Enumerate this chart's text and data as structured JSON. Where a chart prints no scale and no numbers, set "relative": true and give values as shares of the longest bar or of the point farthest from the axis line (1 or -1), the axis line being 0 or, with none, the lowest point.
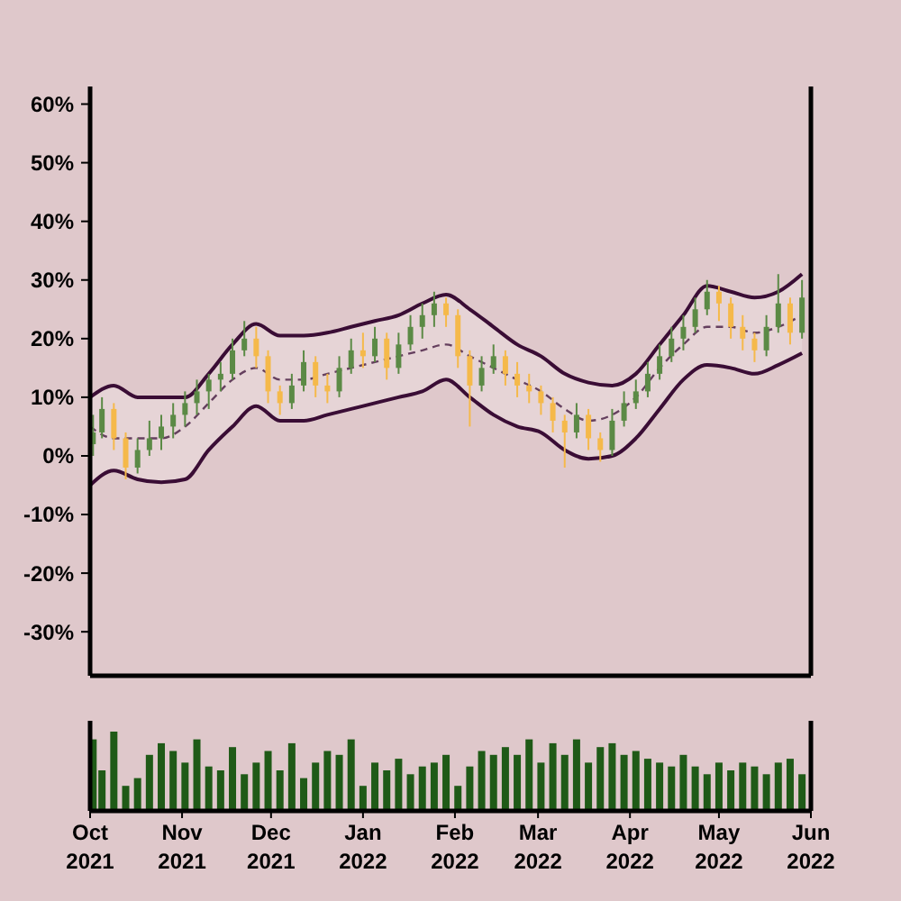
{
  "chart_data": [
    {
      "type": "candlestick",
      "x": [
        "2021-10-02",
        "2021-10-05",
        "2021-10-09",
        "2021-10-13",
        "2021-10-17",
        "2021-10-21",
        "2021-10-25",
        "2021-10-29",
        "2021-11-02",
        "2021-11-06",
        "2021-11-10",
        "2021-11-14",
        "2021-11-18",
        "2021-11-22",
        "2021-11-26",
        "2021-11-30",
        "2021-12-04",
        "2021-12-08",
        "2021-12-12",
        "2021-12-16",
        "2021-12-20",
        "2021-12-24",
        "2021-12-28",
        "2022-01-01",
        "2022-01-05",
        "2022-01-09",
        "2022-01-13",
        "2022-01-17",
        "2022-01-21",
        "2022-01-25",
        "2022-01-29",
        "2022-02-02",
        "2022-02-06",
        "2022-02-10",
        "2022-02-14",
        "2022-02-18",
        "2022-02-22",
        "2022-02-26",
        "2022-03-02",
        "2022-03-06",
        "2022-03-10",
        "2022-03-14",
        "2022-03-18",
        "2022-03-22",
        "2022-03-26",
        "2022-03-30",
        "2022-04-03",
        "2022-04-07",
        "2022-04-11",
        "2022-04-15",
        "2022-04-19",
        "2022-04-23",
        "2022-04-27",
        "2022-05-01",
        "2022-05-05",
        "2022-05-09",
        "2022-05-13",
        "2022-05-17",
        "2022-05-21",
        "2022-05-25",
        "2022-05-29"
      ],
      "ohlc": [
        [
          2,
          7,
          0,
          4
        ],
        [
          4,
          10,
          3,
          8
        ],
        [
          8,
          9,
          1,
          3
        ],
        [
          3,
          4,
          -4,
          -2
        ],
        [
          -2,
          3,
          -3,
          1
        ],
        [
          1,
          6,
          0,
          3
        ],
        [
          3,
          7,
          1,
          5
        ],
        [
          5,
          9,
          3,
          7
        ],
        [
          7,
          11,
          5,
          9
        ],
        [
          9,
          13,
          7,
          11
        ],
        [
          11,
          14,
          8,
          13
        ],
        [
          13,
          16,
          11,
          14
        ],
        [
          14,
          20,
          13,
          18
        ],
        [
          18,
          23,
          17,
          20
        ],
        [
          20,
          22,
          15,
          17
        ],
        [
          17,
          18,
          9,
          11
        ],
        [
          11,
          12,
          7,
          9
        ],
        [
          9,
          14,
          8,
          12
        ],
        [
          12,
          18,
          11,
          16
        ],
        [
          16,
          17,
          10,
          12
        ],
        [
          12,
          14,
          9,
          11
        ],
        [
          11,
          17,
          10,
          15
        ],
        [
          15,
          20,
          14,
          18
        ],
        [
          18,
          21,
          15,
          17
        ],
        [
          17,
          22,
          16,
          20
        ],
        [
          20,
          21,
          13,
          15
        ],
        [
          15,
          21,
          14,
          19
        ],
        [
          19,
          24,
          18,
          22
        ],
        [
          22,
          26,
          20,
          24
        ],
        [
          24,
          28,
          22,
          26
        ],
        [
          26,
          27,
          22,
          24
        ],
        [
          24,
          25,
          15,
          17
        ],
        [
          17,
          18,
          5,
          12
        ],
        [
          12,
          17,
          11,
          15
        ],
        [
          15,
          19,
          14,
          17
        ],
        [
          17,
          18,
          12,
          14
        ],
        [
          14,
          16,
          10,
          12
        ],
        [
          12,
          14,
          9,
          11
        ],
        [
          11,
          12,
          7,
          9
        ],
        [
          9,
          10,
          4,
          6
        ],
        [
          6,
          7,
          -2,
          4
        ],
        [
          4,
          9,
          3,
          7
        ],
        [
          7,
          8,
          1,
          3
        ],
        [
          3,
          4,
          -1,
          1
        ],
        [
          1,
          8,
          0,
          6
        ],
        [
          6,
          11,
          5,
          9
        ],
        [
          9,
          13,
          8,
          11
        ],
        [
          11,
          16,
          10,
          14
        ],
        [
          14,
          19,
          13,
          17
        ],
        [
          17,
          22,
          16,
          20
        ],
        [
          20,
          24,
          18,
          22
        ],
        [
          22,
          27,
          21,
          25
        ],
        [
          25,
          30,
          24,
          28
        ],
        [
          28,
          29,
          23,
          26
        ],
        [
          26,
          27,
          20,
          22
        ],
        [
          22,
          24,
          18,
          20
        ],
        [
          20,
          21,
          16,
          18
        ],
        [
          18,
          24,
          17,
          22
        ],
        [
          22,
          31,
          21,
          26
        ],
        [
          26,
          27,
          19,
          21
        ],
        [
          21,
          30,
          20,
          27
        ]
      ],
      "colors": [
        "#5b8a45",
        "#5b8a45",
        "#f5b94a",
        "#f5b94a",
        "#5b8a45",
        "#5b8a45",
        "#5b8a45",
        "#5b8a45",
        "#5b8a45",
        "#5b8a45",
        "#5b8a45",
        "#5b8a45",
        "#5b8a45",
        "#5b8a45",
        "#f5b94a",
        "#f5b94a",
        "#f5b94a",
        "#5b8a45",
        "#5b8a45",
        "#f5b94a",
        "#f5b94a",
        "#5b8a45",
        "#5b8a45",
        "#f5b94a",
        "#5b8a45",
        "#f5b94a",
        "#5b8a45",
        "#5b8a45",
        "#5b8a45",
        "#5b8a45",
        "#f5b94a",
        "#f5b94a",
        "#f5b94a",
        "#5b8a45",
        "#5b8a45",
        "#f5b94a",
        "#f5b94a",
        "#f5b94a",
        "#f5b94a",
        "#f5b94a",
        "#f5b94a",
        "#5b8a45",
        "#f5b94a",
        "#f5b94a",
        "#5b8a45",
        "#5b8a45",
        "#5b8a45",
        "#5b8a45",
        "#5b8a45",
        "#5b8a45",
        "#5b8a45",
        "#5b8a45",
        "#5b8a45",
        "#f5b94a",
        "#f5b94a",
        "#f5b94a",
        "#f5b94a",
        "#5b8a45",
        "#5b8a45",
        "#f5b94a",
        "#5b8a45"
      ],
      "series": [
        {
          "type": "line",
          "color": "#3a0d35",
          "line_style": "dashed",
          "x": [
            "2021-10-01",
            "2021-10-09",
            "2021-10-17",
            "2021-10-25",
            "2021-11-02",
            "2021-11-10",
            "2021-11-18",
            "2021-11-26",
            "2021-12-04",
            "2021-12-12",
            "2021-12-20",
            "2021-12-28",
            "2022-01-05",
            "2022-01-13",
            "2022-01-21",
            "2022-01-29",
            "2022-02-06",
            "2022-02-14",
            "2022-02-22",
            "2022-03-02",
            "2022-03-10",
            "2022-03-18",
            "2022-03-26",
            "2022-04-03",
            "2022-04-11",
            "2022-04-19",
            "2022-04-27",
            "2022-05-05",
            "2022-05-13",
            "2022-05-21",
            "2022-05-29"
          ],
          "values": [
            5,
            3,
            3,
            3,
            5,
            9,
            13,
            15,
            13,
            13,
            14,
            15,
            16,
            17,
            18,
            19,
            17,
            15,
            13,
            11,
            8,
            6,
            7,
            10,
            15,
            19,
            22,
            22,
            21,
            22,
            24
          ],
          "upper": [
            10,
            12,
            10,
            10,
            10,
            14,
            19,
            22.5,
            20.5,
            20.5,
            21,
            22,
            23,
            24,
            26,
            27.5,
            25,
            22,
            19,
            17,
            14,
            12.5,
            12,
            14,
            19,
            24,
            29,
            28,
            27,
            28,
            31
          ],
          "lower": [
            -5,
            -2.5,
            -4,
            -4.5,
            -4,
            1,
            5,
            8.5,
            6,
            6,
            7,
            8,
            9,
            10,
            11,
            13,
            10,
            7,
            5,
            4,
            1,
            -0.5,
            0,
            3,
            8,
            13,
            15.5,
            15,
            14,
            15.5,
            17.5
          ]
        },
        {
          "type": "line",
          "color": "#3a0d35",
          "line_style": "solid",
          "x": [
            "2021-10-01",
            "2021-10-09",
            "2021-10-17",
            "2021-10-25",
            "2021-11-02",
            "2021-11-10",
            "2021-11-18",
            "2021-11-26",
            "2021-12-04",
            "2021-12-12",
            "2021-12-20",
            "2021-12-28",
            "2022-01-05",
            "2022-01-13",
            "2022-01-21",
            "2022-01-29",
            "2022-02-06",
            "2022-02-14",
            "2022-02-22",
            "2022-03-02",
            "2022-03-10",
            "2022-03-18",
            "2022-03-26",
            "2022-04-03",
            "2022-04-11",
            "2022-04-19",
            "2022-04-27",
            "2022-05-05",
            "2022-05-13",
            "2022-05-21",
            "2022-05-29"
          ],
          "values": [
            10,
            12,
            10,
            10,
            10,
            14,
            19,
            22.5,
            20.5,
            20.5,
            21,
            22,
            23,
            24,
            26,
            27.5,
            25,
            22,
            19,
            17,
            14,
            12.5,
            12,
            14,
            19,
            24,
            29,
            28,
            27,
            28,
            31
          ]
        },
        {
          "type": "line",
          "color": "#3a0d35",
          "line_style": "solid",
          "x": [
            "2021-10-01",
            "2021-10-09",
            "2021-10-17",
            "2021-10-25",
            "2021-11-02",
            "2021-11-10",
            "2021-11-18",
            "2021-11-26",
            "2021-12-04",
            "2021-12-12",
            "2021-12-20",
            "2021-12-28",
            "2022-01-05",
            "2022-01-13",
            "2022-01-21",
            "2022-01-29",
            "2022-02-06",
            "2022-02-14",
            "2022-02-22",
            "2022-03-02",
            "2022-03-10",
            "2022-03-18",
            "2022-03-26",
            "2022-04-03",
            "2022-04-11",
            "2022-04-19",
            "2022-04-27",
            "2022-05-05",
            "2022-05-13",
            "2022-05-21",
            "2022-05-29"
          ],
          "values": [
            -5,
            -2.5,
            -4,
            -4.5,
            -4,
            1,
            5,
            8.5,
            6,
            6,
            7,
            8,
            9,
            10,
            11,
            13,
            10,
            7,
            5,
            4,
            1,
            -0.5,
            0,
            3,
            8,
            13,
            15.5,
            15,
            14,
            15.5,
            17.5
          ]
        }
      ],
      "xlim": [
        "2021-10-01",
        "2022-06-01"
      ],
      "ylim": [
        -37.5,
        63
      ],
      "yticks": [
        {
          "value": -30,
          "label": "-30%"
        },
        {
          "value": -20,
          "label": "-20%"
        },
        {
          "value": -10,
          "label": "-10%"
        },
        {
          "value": 0,
          "label": "0%"
        },
        {
          "value": 10,
          "label": "10%"
        },
        {
          "value": 20,
          "label": "20%"
        },
        {
          "value": 30,
          "label": "30%"
        },
        {
          "value": 40,
          "label": "40%"
        },
        {
          "value": 50,
          "label": "50%"
        },
        {
          "value": 60,
          "label": "60%"
        }
      ],
      "tick_labels": "y"
    },
    {
      "type": "bar",
      "relative": true,
      "color": "#1f5a17",
      "x": [
        "2021-10-02",
        "2021-10-05",
        "2021-10-09",
        "2021-10-13",
        "2021-10-17",
        "2021-10-21",
        "2021-10-25",
        "2021-10-29",
        "2021-11-02",
        "2021-11-06",
        "2021-11-10",
        "2021-11-14",
        "2021-11-18",
        "2021-11-22",
        "2021-11-26",
        "2021-11-30",
        "2021-12-04",
        "2021-12-08",
        "2021-12-12",
        "2021-12-16",
        "2021-12-20",
        "2021-12-24",
        "2021-12-28",
        "2022-01-01",
        "2022-01-05",
        "2022-01-09",
        "2022-01-13",
        "2022-01-17",
        "2022-01-21",
        "2022-01-25",
        "2022-01-29",
        "2022-02-02",
        "2022-02-06",
        "2022-02-10",
        "2022-02-14",
        "2022-02-18",
        "2022-02-22",
        "2022-02-26",
        "2022-03-02",
        "2022-03-06",
        "2022-03-10",
        "2022-03-14",
        "2022-03-18",
        "2022-03-22",
        "2022-03-26",
        "2022-03-30",
        "2022-04-03",
        "2022-04-07",
        "2022-04-11",
        "2022-04-15",
        "2022-04-19",
        "2022-04-23",
        "2022-04-27",
        "2022-05-01",
        "2022-05-05",
        "2022-05-09",
        "2022-05-13",
        "2022-05-17",
        "2022-05-21",
        "2022-05-25",
        "2022-05-29"
      ],
      "values": [
        0.9,
        0.5,
        1,
        0.3,
        0.4,
        0.7,
        0.85,
        0.75,
        0.6,
        0.9,
        0.55,
        0.5,
        0.8,
        0.45,
        0.6,
        0.75,
        0.5,
        0.85,
        0.4,
        0.6,
        0.75,
        0.7,
        0.9,
        0.3,
        0.6,
        0.5,
        0.65,
        0.45,
        0.55,
        0.6,
        0.7,
        0.3,
        0.55,
        0.75,
        0.7,
        0.8,
        0.7,
        0.9,
        0.6,
        0.85,
        0.7,
        0.9,
        0.6,
        0.8,
        0.85,
        0.7,
        0.75,
        0.65,
        0.6,
        0.55,
        0.7,
        0.55,
        0.45,
        0.6,
        0.5,
        0.6,
        0.55,
        0.45,
        0.6,
        0.65,
        0.45
      ],
      "xlim": [
        "2021-10-01",
        "2022-06-01"
      ],
      "xticks": [
        {
          "value": "2021-10-01",
          "label": "Oct 2021"
        },
        {
          "value": "2021-11-01",
          "label": "Nov 2021"
        },
        {
          "value": "2021-12-01",
          "label": "Dec 2021"
        },
        {
          "value": "2022-01-01",
          "label": "Jan 2022"
        },
        {
          "value": "2022-02-01",
          "label": "Feb 2022"
        },
        {
          "value": "2022-03-01",
          "label": "Mar 2022"
        },
        {
          "value": "2022-04-01",
          "label": "Apr 2022"
        },
        {
          "value": "2022-05-01",
          "label": "May 2022"
        },
        {
          "value": "2022-06-01",
          "label": "Jun 2022"
        }
      ]
    }
  ]
}
